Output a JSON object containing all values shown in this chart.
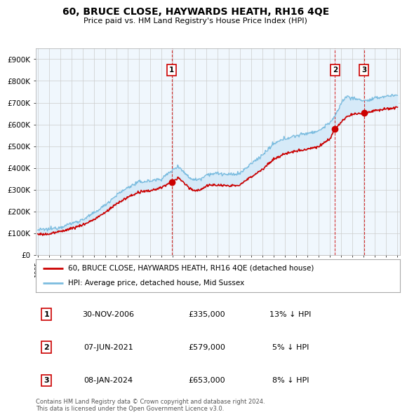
{
  "title": "60, BRUCE CLOSE, HAYWARDS HEATH, RH16 4QE",
  "subtitle": "Price paid vs. HM Land Registry's House Price Index (HPI)",
  "ylim": [
    0,
    950000
  ],
  "yticks": [
    0,
    100000,
    200000,
    300000,
    400000,
    500000,
    600000,
    700000,
    800000,
    900000
  ],
  "ytick_labels": [
    "£0",
    "£100K",
    "£200K",
    "£300K",
    "£400K",
    "£500K",
    "£600K",
    "£700K",
    "£800K",
    "£900K"
  ],
  "hpi_color": "#7bbcdf",
  "hpi_fill_color": "#d6eaf8",
  "price_color": "#cc0000",
  "vline_color": "#cc0000",
  "grid_color": "#cccccc",
  "background_color": "#ffffff",
  "chart_bg_color": "#f0f7fd",
  "trans_years": [
    2006.917,
    2021.44,
    2024.03
  ],
  "trans_prices": [
    335000,
    579000,
    653000
  ],
  "trans_labels": [
    "1",
    "2",
    "3"
  ],
  "transaction_table": [
    {
      "num": "1",
      "date": "30-NOV-2006",
      "price": "£335,000",
      "hpi": "13% ↓ HPI"
    },
    {
      "num": "2",
      "date": "07-JUN-2021",
      "price": "£579,000",
      "hpi": "5% ↓ HPI"
    },
    {
      "num": "3",
      "date": "08-JAN-2024",
      "price": "£653,000",
      "hpi": "8% ↓ HPI"
    }
  ],
  "legend_line1": "60, BRUCE CLOSE, HAYWARDS HEATH, RH16 4QE (detached house)",
  "legend_line2": "HPI: Average price, detached house, Mid Sussex",
  "footnote": "Contains HM Land Registry data © Crown copyright and database right 2024.\nThis data is licensed under the Open Government Licence v3.0.",
  "xstart_year": 1995,
  "xend_year": 2027
}
